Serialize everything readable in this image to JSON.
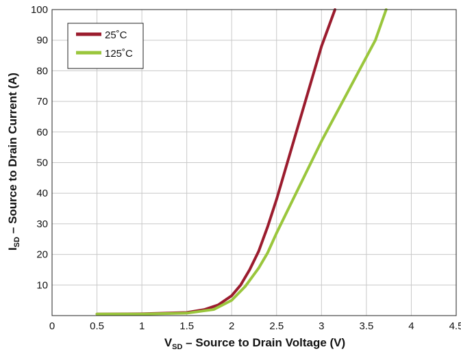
{
  "chart_data": {
    "type": "line",
    "xlabel_main": "V",
    "xlabel_sub": "SD",
    "xlabel_rest": " – Source to Drain Voltage (V)",
    "ylabel_main": "I",
    "ylabel_sub": "SD",
    "ylabel_rest": " – Source to Drain Current (A)",
    "xlim": [
      0,
      4.5
    ],
    "ylim": [
      0,
      100
    ],
    "x_ticks": [
      "0",
      "0.5",
      "1",
      "1.5",
      "2",
      "2.5",
      "3",
      "3.5",
      "4",
      "4.5"
    ],
    "y_ticks": [
      "10",
      "20",
      "30",
      "40",
      "50",
      "60",
      "70",
      "80",
      "90",
      "100"
    ],
    "grid": true,
    "legend_position": "top-left",
    "series": [
      {
        "name": "25˚C",
        "color": "#9b1c2e",
        "points": [
          [
            0.5,
            0.5
          ],
          [
            1.0,
            0.6
          ],
          [
            1.5,
            1.0
          ],
          [
            1.7,
            2.0
          ],
          [
            1.85,
            3.5
          ],
          [
            2.0,
            6.5
          ],
          [
            2.1,
            10
          ],
          [
            2.2,
            15
          ],
          [
            2.3,
            21
          ],
          [
            2.4,
            29
          ],
          [
            2.5,
            38
          ],
          [
            2.6,
            48
          ],
          [
            2.7,
            58
          ],
          [
            2.8,
            68
          ],
          [
            2.9,
            78
          ],
          [
            3.0,
            88
          ],
          [
            3.15,
            100
          ]
        ]
      },
      {
        "name": "125˚C",
        "color": "#9ac63c",
        "points": [
          [
            0.5,
            0.5
          ],
          [
            1.0,
            0.5
          ],
          [
            1.5,
            0.8
          ],
          [
            1.8,
            2.0
          ],
          [
            2.0,
            5.0
          ],
          [
            2.15,
            9.5
          ],
          [
            2.3,
            15.5
          ],
          [
            2.4,
            20.5
          ],
          [
            2.5,
            27
          ],
          [
            2.6,
            33
          ],
          [
            2.8,
            45
          ],
          [
            3.0,
            57
          ],
          [
            3.2,
            68
          ],
          [
            3.4,
            79
          ],
          [
            3.6,
            90
          ],
          [
            3.72,
            100
          ]
        ]
      }
    ]
  }
}
